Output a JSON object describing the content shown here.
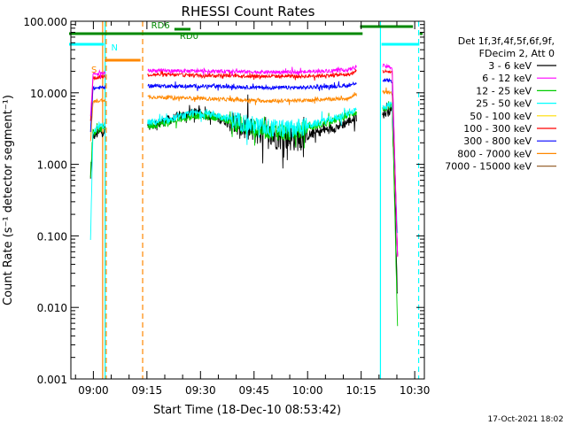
{
  "chart_data": {
    "type": "line",
    "title": "RHESSI Count Rates",
    "xlabel": "Start Time (18-Dec-10 08:53:42)",
    "ylabel": "Count Rate (s⁻¹ detector segment⁻¹)",
    "x_unit": "minutes since 08:53:42",
    "xlim": [
      0,
      99
    ],
    "ylim": [
      0.001,
      100
    ],
    "yscale": "log",
    "x_ticks": [
      {
        "x": 6.3,
        "label": "09:00"
      },
      {
        "x": 21.3,
        "label": "09:15"
      },
      {
        "x": 36.3,
        "label": "09:30"
      },
      {
        "x": 51.3,
        "label": "09:45"
      },
      {
        "x": 66.3,
        "label": "10:00"
      },
      {
        "x": 81.3,
        "label": "10:15"
      },
      {
        "x": 96.3,
        "label": "10:30"
      }
    ],
    "y_ticks": [
      {
        "y": 100,
        "label": "100.000"
      },
      {
        "y": 10,
        "label": "10.000"
      },
      {
        "y": 1,
        "label": "1.000"
      },
      {
        "y": 0.1,
        "label": "0.100"
      },
      {
        "y": 0.01,
        "label": "0.010"
      },
      {
        "y": 0.001,
        "label": "0.001"
      }
    ],
    "legend": {
      "placement": "right",
      "header": [
        "Det 1f,3f,4f,5f,6f,9f,",
        "FDecim 2, Att 0"
      ],
      "entries": [
        {
          "label": "3 - 6 keV",
          "color": "#000000"
        },
        {
          "label": "6 - 12 keV",
          "color": "#ff00ff"
        },
        {
          "label": "12 - 25 keV",
          "color": "#00cc00"
        },
        {
          "label": "25 - 50 keV",
          "color": "#00ffff"
        },
        {
          "label": "50 - 100 keV",
          "color": "#ffdd00"
        },
        {
          "label": "100 - 300 keV",
          "color": "#ff0000"
        },
        {
          "label": "300 - 800 keV",
          "color": "#0000ff"
        },
        {
          "label": "800 - 7000 keV",
          "color": "#ff8800"
        },
        {
          "label": "7000 - 15000 keV",
          "color": "#996633"
        }
      ]
    },
    "segments_t": [
      [
        5.5,
        9.6
      ],
      [
        21.5,
        80.0
      ],
      [
        87.3,
        91.5
      ]
    ],
    "series": [
      {
        "name": "3 - 6 keV",
        "color": "#000000",
        "noise": 0.07,
        "values": [
          [
            5.5,
            0.6
          ],
          [
            6.2,
            2.5
          ],
          [
            9.5,
            3.0
          ],
          [
            21.5,
            3.5
          ],
          [
            25,
            3.8
          ],
          [
            30,
            4.6
          ],
          [
            35,
            5.3
          ],
          [
            40,
            4.6
          ],
          [
            45,
            3.8
          ],
          [
            50,
            3.0
          ],
          [
            55,
            2.6
          ],
          [
            60,
            2.3
          ],
          [
            64,
            2.3
          ],
          [
            70,
            2.9
          ],
          [
            75,
            3.4
          ],
          [
            80,
            4.5
          ],
          [
            87.3,
            5.0
          ],
          [
            90,
            5.8
          ],
          [
            91.5,
            0.015
          ]
        ]
      },
      {
        "name": "12 - 25 keV",
        "color": "#00cc00",
        "noise": 0.05,
        "values": [
          [
            5.5,
            0.7
          ],
          [
            6.2,
            2.8
          ],
          [
            9.5,
            3.3
          ],
          [
            21.5,
            3.4
          ],
          [
            27,
            3.8
          ],
          [
            30,
            4.2
          ],
          [
            35,
            4.8
          ],
          [
            40,
            4.6
          ],
          [
            45,
            4.0
          ],
          [
            50,
            3.3
          ],
          [
            55,
            3.0
          ],
          [
            60,
            2.8
          ],
          [
            65,
            3.0
          ],
          [
            70,
            3.6
          ],
          [
            75,
            4.3
          ],
          [
            80,
            5.4
          ],
          [
            87.3,
            5.8
          ],
          [
            90,
            6.5
          ],
          [
            91.5,
            0.005
          ]
        ]
      },
      {
        "name": "25 - 50 keV",
        "color": "#00ffff",
        "noise": 0.05,
        "values": [
          [
            5.5,
            0.08
          ],
          [
            6.2,
            3.0
          ],
          [
            9.5,
            3.6
          ],
          [
            21.5,
            3.8
          ],
          [
            27,
            4.1
          ],
          [
            30,
            4.6
          ],
          [
            35,
            5.2
          ],
          [
            40,
            5.0
          ],
          [
            45,
            4.3
          ],
          [
            50,
            3.6
          ],
          [
            55,
            3.3
          ],
          [
            60,
            3.1
          ],
          [
            65,
            3.3
          ],
          [
            70,
            3.9
          ],
          [
            75,
            4.6
          ],
          [
            80,
            5.8
          ],
          [
            87.3,
            6.2
          ],
          [
            90,
            7.0
          ],
          [
            91.5,
            0.1
          ]
        ]
      },
      {
        "name": "800 - 7000 keV",
        "color": "#ff8800",
        "noise": 0.025,
        "values": [
          [
            5.5,
            2.0
          ],
          [
            6.2,
            7.5
          ],
          [
            9.5,
            8.0
          ],
          [
            21.5,
            8.8
          ],
          [
            40,
            8.2
          ],
          [
            55,
            7.7
          ],
          [
            65,
            7.8
          ],
          [
            78,
            8.4
          ],
          [
            80,
            9.4
          ],
          [
            87.3,
            10.2
          ],
          [
            90,
            10.0
          ],
          [
            91.5,
            0.05
          ]
        ]
      },
      {
        "name": "300 - 800 keV",
        "color": "#0000ff",
        "noise": 0.025,
        "values": [
          [
            5.5,
            3.0
          ],
          [
            6.2,
            11.5
          ],
          [
            9.5,
            12.0
          ],
          [
            21.5,
            12.5
          ],
          [
            40,
            12.3
          ],
          [
            55,
            11.8
          ],
          [
            65,
            11.8
          ],
          [
            78,
            12.6
          ],
          [
            80,
            14.0
          ],
          [
            87.3,
            15.0
          ],
          [
            90,
            14.6
          ],
          [
            91.5,
            0.05
          ]
        ]
      },
      {
        "name": "100 - 300 keV",
        "color": "#ff0000",
        "noise": 0.025,
        "values": [
          [
            5.5,
            4.0
          ],
          [
            6.2,
            16.0
          ],
          [
            9.5,
            17.0
          ],
          [
            21.5,
            18.0
          ],
          [
            40,
            17.5
          ],
          [
            55,
            17.0
          ],
          [
            65,
            17.0
          ],
          [
            78,
            18.0
          ],
          [
            80,
            20.0
          ],
          [
            87.3,
            20.0
          ],
          [
            90,
            19.5
          ],
          [
            91.5,
            0.05
          ]
        ]
      },
      {
        "name": "6 - 12 keV",
        "color": "#ff00ff",
        "noise": 0.025,
        "values": [
          [
            5.5,
            4.5
          ],
          [
            6.2,
            18.0
          ],
          [
            9.5,
            19.0
          ],
          [
            21.5,
            20.5
          ],
          [
            40,
            20.0
          ],
          [
            55,
            19.5
          ],
          [
            65,
            19.5
          ],
          [
            78,
            21.0
          ],
          [
            80,
            23.5
          ],
          [
            87.3,
            24.0
          ],
          [
            90,
            22.5
          ],
          [
            91.5,
            0.05
          ]
        ]
      }
    ],
    "vertical_lines": [
      {
        "x": -0.5,
        "color": "#00ffff",
        "style": "solid"
      },
      {
        "x": 9.6,
        "color": "#00ffff",
        "style": "solid"
      },
      {
        "x": 8.9,
        "color": "#ff8800",
        "style": "solid"
      },
      {
        "x": 9.9,
        "color": "#ff8800",
        "style": "dashed"
      },
      {
        "x": 20.1,
        "color": "#ff8800",
        "style": "dashed"
      },
      {
        "x": 86.7,
        "color": "#00ffff",
        "style": "solid"
      },
      {
        "x": 97.4,
        "color": "#00ffff",
        "style": "dashed"
      }
    ],
    "state_bars": [
      {
        "label": "S",
        "color": "#ff8800",
        "x1": 9.5,
        "x2": 19.5,
        "y": 68
      },
      {
        "label": "N",
        "color": "#00ffff",
        "x1": -0.5,
        "x2": 9.3,
        "y": 50
      },
      {
        "label": "",
        "color": "#00ffff",
        "x1": 87.0,
        "x2": 97.6,
        "y": 50
      },
      {
        "label": "",
        "color": "#008800",
        "x1": -0.5,
        "x2": 81.7,
        "y": 38
      },
      {
        "label": "RD6",
        "color": "#008800",
        "x1": 29.0,
        "x2": 33.5,
        "y": 33
      },
      {
        "label": "RD0",
        "color": "#008800",
        "x1": 81.0,
        "x2": 95.8,
        "y": 30
      },
      {
        "label": "",
        "color": "#008800",
        "x1": 97.7,
        "x2": 98.5,
        "y": 38
      }
    ],
    "bar_labels": [
      {
        "text": "S",
        "color": "#ff8800",
        "x": 5.7,
        "y": 82
      },
      {
        "text": "N",
        "color": "#00ffff",
        "x": 11.3,
        "y": 57
      },
      {
        "text": "RD0",
        "color": "#008800",
        "x": 30.5,
        "y": 44
      },
      {
        "text": "RD6",
        "color": "#008800",
        "x": 22.5,
        "y": 32
      }
    ]
  },
  "footer": {
    "stamp": "17-Oct-2021 18:02"
  }
}
